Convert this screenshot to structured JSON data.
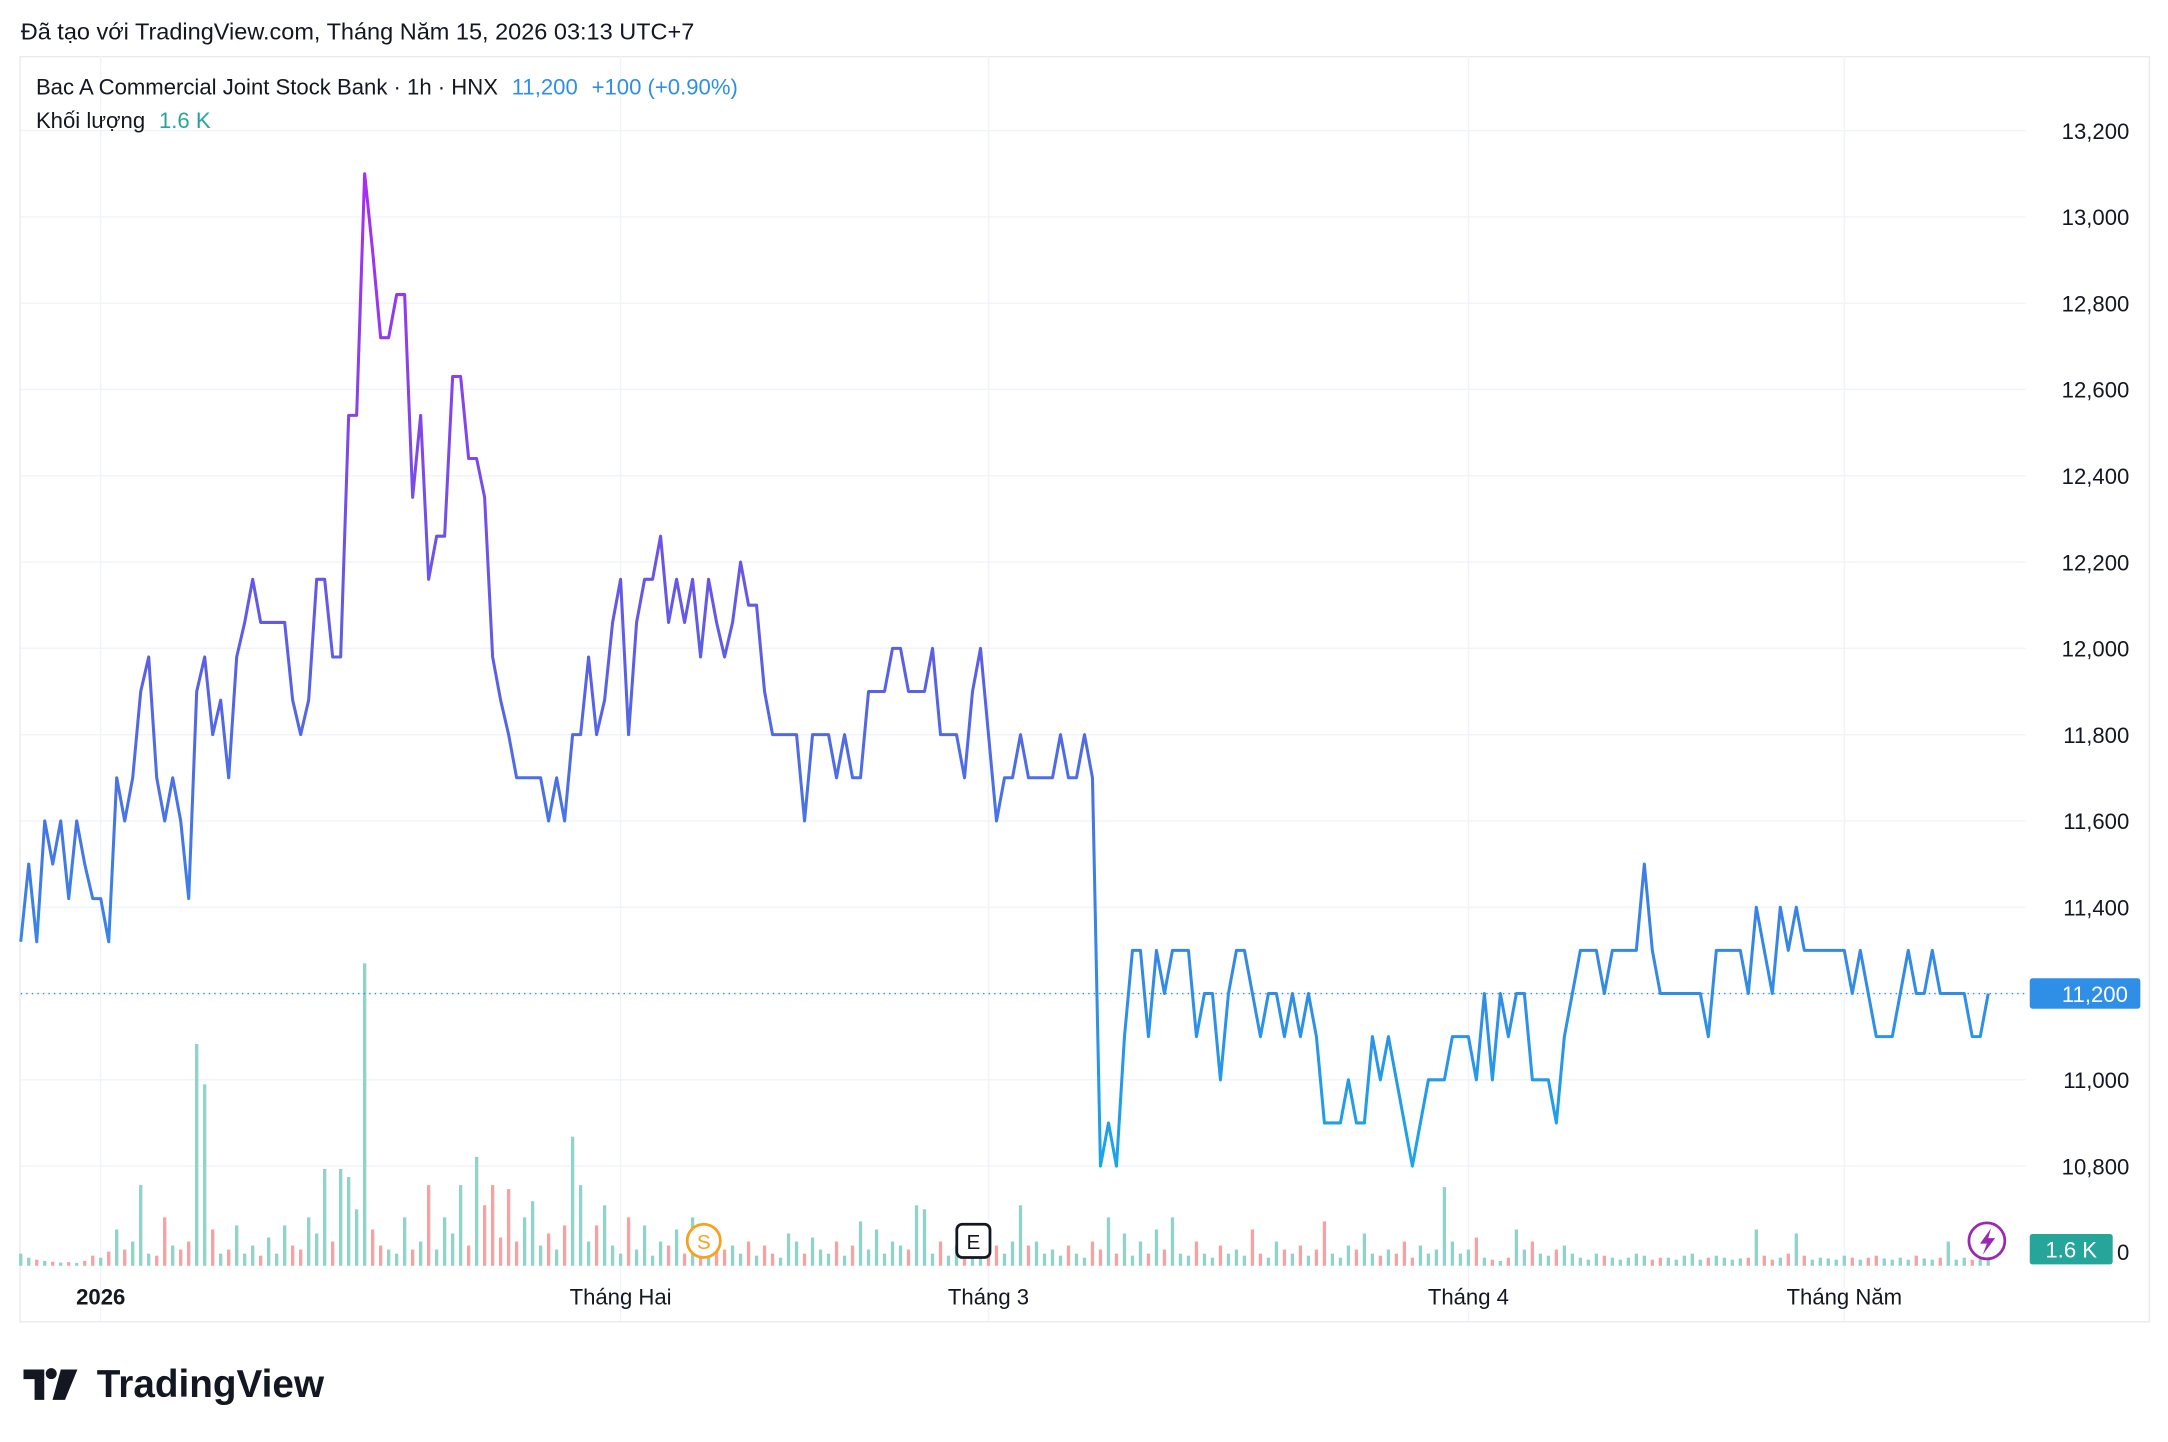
{
  "header": {
    "created": "Đã tạo với TradingView.com, Tháng Năm 15, 2026 03:13 UTC+7",
    "logo": "TradingView"
  },
  "chart_data": {
    "type": "line",
    "symbol": "Bac A Commercial Joint Stock Bank · 1h · HNX",
    "last_price": "11,200",
    "change": "+100 (+0.90%)",
    "volume_title": "Khối lượng",
    "volume_label": "1.6 K",
    "price_badge": "11,200",
    "volume_badge": "1.6 K",
    "events": [
      "S",
      "E"
    ],
    "line_colors": [
      "#a92cf2",
      "#5a60e4",
      "#1aa6e8"
    ],
    "up_color": "#8fd3c9",
    "down_color": "#f3a3a3",
    "last_color": "#2f8fe6",
    "grid": true,
    "ylim": [
      10569,
      13373
    ],
    "yticks": [
      {
        "value": 10800,
        "label": "10,800"
      },
      {
        "value": 11000,
        "label": "11,000"
      },
      {
        "value": 11200,
        "label": "11,200"
      },
      {
        "value": 11400,
        "label": "11,400"
      },
      {
        "value": 11600,
        "label": "11,600"
      },
      {
        "value": 11800,
        "label": "11,800"
      },
      {
        "value": 12000,
        "label": "12,000"
      },
      {
        "value": 12200,
        "label": "12,200"
      },
      {
        "value": 12400,
        "label": "12,400"
      },
      {
        "value": 12600,
        "label": "12,600"
      },
      {
        "value": 12800,
        "label": "12,800"
      },
      {
        "value": 13000,
        "label": "13,000"
      },
      {
        "value": 13200,
        "label": "13,200"
      }
    ],
    "vlim": [
      0,
      300000
    ],
    "vticks": [
      0
    ],
    "xticks": [
      {
        "value": 10,
        "label": "2026"
      },
      {
        "value": 75,
        "label": "Tháng Hai"
      },
      {
        "value": 121,
        "label": "Tháng 3"
      },
      {
        "value": 181,
        "label": "Tháng 4"
      },
      {
        "value": 228,
        "label": "Tháng Năm"
      }
    ],
    "values": [
      11320,
      11500,
      11320,
      11600,
      11500,
      11600,
      11420,
      11600,
      11500,
      11420,
      11420,
      11320,
      11700,
      11600,
      11700,
      11900,
      11980,
      11700,
      11600,
      11700,
      11600,
      11420,
      11900,
      11980,
      11800,
      11880,
      11700,
      11980,
      12060,
      12160,
      12060,
      12060,
      12060,
      12060,
      11880,
      11800,
      11880,
      12160,
      12160,
      11980,
      11980,
      12540,
      12540,
      13100,
      12920,
      12720,
      12720,
      12820,
      12820,
      12350,
      12540,
      12160,
      12260,
      12260,
      12630,
      12630,
      12440,
      12440,
      12350,
      11980,
      11880,
      11800,
      11700,
      11700,
      11700,
      11700,
      11600,
      11700,
      11600,
      11800,
      11800,
      11980,
      11800,
      11880,
      12060,
      12160,
      11800,
      12060,
      12160,
      12160,
      12260,
      12060,
      12160,
      12060,
      12160,
      11980,
      12160,
      12060,
      11980,
      12060,
      12200,
      12100,
      12100,
      11900,
      11800,
      11800,
      11800,
      11800,
      11600,
      11800,
      11800,
      11800,
      11700,
      11800,
      11700,
      11700,
      11900,
      11900,
      11900,
      12000,
      12000,
      11900,
      11900,
      11900,
      12000,
      11800,
      11800,
      11800,
      11700,
      11900,
      12000,
      11800,
      11600,
      11700,
      11700,
      11800,
      11700,
      11700,
      11700,
      11700,
      11800,
      11700,
      11700,
      11800,
      11700,
      10800,
      10900,
      10800,
      11100,
      11300,
      11300,
      11100,
      11300,
      11200,
      11300,
      11300,
      11300,
      11100,
      11200,
      11200,
      11000,
      11200,
      11300,
      11300,
      11200,
      11100,
      11200,
      11200,
      11100,
      11200,
      11100,
      11200,
      11100,
      10900,
      10900,
      10900,
      11000,
      10900,
      10900,
      11100,
      11000,
      11100,
      11000,
      10900,
      10800,
      10900,
      11000,
      11000,
      11000,
      11100,
      11100,
      11100,
      11000,
      11200,
      11000,
      11200,
      11100,
      11200,
      11200,
      11000,
      11000,
      11000,
      10900,
      11100,
      11200,
      11300,
      11300,
      11300,
      11200,
      11300,
      11300,
      11300,
      11300,
      11500,
      11300,
      11200,
      11200,
      11200,
      11200,
      11200,
      11200,
      11100,
      11300,
      11300,
      11300,
      11300,
      11200,
      11400,
      11300,
      11200,
      11400,
      11300,
      11400,
      11300,
      11300,
      11300,
      11300,
      11300,
      11300,
      11200,
      11300,
      11200,
      11100,
      11100,
      11100,
      11200,
      11300,
      11200,
      11200,
      11300,
      11200,
      11200,
      11200,
      11200,
      11100,
      11100,
      11200
    ],
    "volume": [
      3000,
      2000,
      1500,
      1200,
      1000,
      800,
      900,
      700,
      1200,
      2500,
      2000,
      3500,
      9000,
      4000,
      6000,
      20000,
      3000,
      2500,
      12000,
      5000,
      4000,
      6000,
      55000,
      45000,
      9000,
      3000,
      4000,
      10000,
      3000,
      5000,
      2500,
      7000,
      3000,
      10000,
      5000,
      4000,
      12000,
      8000,
      24000,
      6000,
      24000,
      22000,
      14000,
      75000,
      9000,
      5000,
      4000,
      3000,
      12000,
      4000,
      6000,
      20000,
      4000,
      12000,
      8000,
      20000,
      5000,
      27000,
      15000,
      20000,
      7000,
      19000,
      6000,
      12000,
      16000,
      5000,
      8000,
      4000,
      10000,
      32000,
      20000,
      6000,
      10000,
      15000,
      5000,
      3000,
      12000,
      4000,
      10000,
      2500,
      6000,
      5000,
      9000,
      3000,
      12000,
      2000,
      7000,
      8000,
      4000,
      5000,
      3000,
      6000,
      2500,
      5000,
      3000,
      2000,
      8000,
      6000,
      3000,
      7000,
      4000,
      3000,
      6000,
      2500,
      5000,
      11000,
      4000,
      9000,
      3000,
      6000,
      5000,
      4000,
      15000,
      14000,
      3000,
      6000,
      2500,
      5000,
      4000,
      3000,
      4000,
      2500,
      5000,
      3000,
      6000,
      15000,
      5000,
      6000,
      3000,
      4000,
      2500,
      5000,
      3000,
      2000,
      6000,
      4000,
      12000,
      3000,
      8000,
      2500,
      6000,
      3000,
      9000,
      4000,
      12000,
      3000,
      2500,
      6000,
      3000,
      2000,
      5000,
      3000,
      4000,
      2500,
      9000,
      3000,
      2000,
      6000,
      4000,
      3000,
      5000,
      2500,
      4000,
      11000,
      3000,
      2000,
      5000,
      4000,
      8000,
      3000,
      2500,
      4000,
      3000,
      6000,
      2000,
      5000,
      3000,
      4000,
      19500,
      6000,
      3000,
      4000,
      7000,
      2000,
      1500,
      1200,
      2000,
      9000,
      4000,
      6000,
      3000,
      2500,
      4000,
      5000,
      3000,
      2000,
      1500,
      3000,
      2500,
      2000,
      1500,
      2000,
      3000,
      2500,
      1500,
      2000,
      2000,
      1500,
      2500,
      3000,
      1500,
      2000,
      2500,
      2000,
      1500,
      1800,
      2000,
      9000,
      2500,
      1500,
      2000,
      3000,
      8000,
      2500,
      1500,
      2000,
      1800,
      1500,
      2500,
      2000,
      1500,
      2000,
      2500,
      1800,
      1500,
      2000,
      1500,
      2500,
      1800,
      1500,
      2000,
      6000,
      1500,
      2000,
      1500,
      1800,
      1600
    ]
  }
}
